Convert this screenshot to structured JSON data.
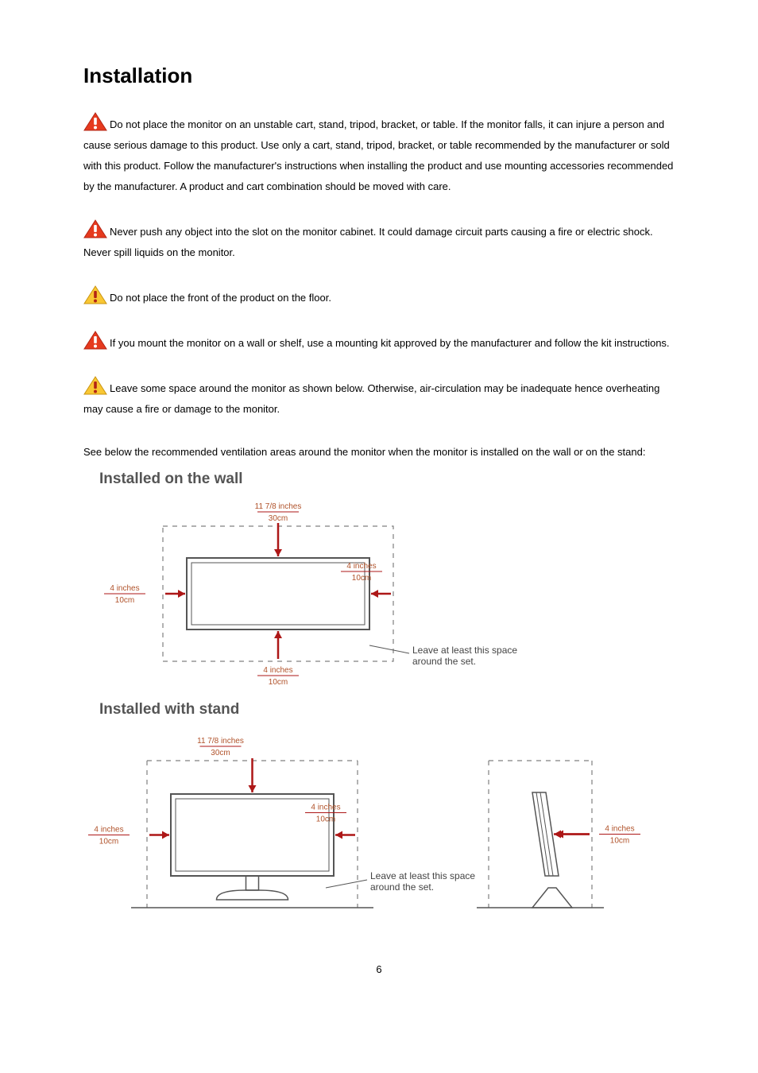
{
  "title": "Installation",
  "warnings": [
    {
      "icon_type": "red",
      "text": "Do not place the monitor on an unstable cart, stand, tripod, bracket, or table. If the monitor falls, it can injure a person and cause serious damage to this product. Use only a cart, stand, tripod, bracket, or table recommended by the manufacturer or sold with this product. Follow the manufacturer's instructions when installing the product and use mounting accessories recommended by the manufacturer. A product and cart combination should be moved with care."
    },
    {
      "icon_type": "red",
      "text": "Never push any object into the slot on the monitor cabinet. It could damage circuit parts causing a fire or electric shock. Never spill liquids on the monitor."
    },
    {
      "icon_type": "yellow",
      "text": "Do not place the front of the product on the floor."
    },
    {
      "icon_type": "red",
      "text": "If you mount the monitor on a wall or shelf, use a mounting kit approved by the manufacturer and follow the kit instructions."
    },
    {
      "icon_type": "yellow",
      "text": "Leave some space around the monitor as shown below. Otherwise, air-circulation may be inadequate hence overheating may cause a fire or damage to the monitor."
    }
  ],
  "plain_text": "See below the recommended ventilation areas around the monitor when the monitor is installed on the wall or on the stand:",
  "diagram1": {
    "title": "Installed on the wall",
    "top_label_inches": "11 7/8 inches",
    "top_label_cm": "30cm",
    "left_label_inches": "4 inches",
    "left_label_cm": "10cm",
    "right_label_inches": "4 inches",
    "right_label_cm": "10cm",
    "bottom_label_inches": "4 inches",
    "bottom_label_cm": "10cm",
    "note_line1": "Leave at least this space",
    "note_line2": "around the set.",
    "colors": {
      "dashed": "#808080",
      "monitor": "#555555",
      "arrow": "#ad1717",
      "label_text": "#b0522a",
      "divider": "#ad1717",
      "note": "#444444"
    }
  },
  "diagram2": {
    "title": "Installed with stand",
    "top_label_inches": "11 7/8 inches",
    "top_label_cm": "30cm",
    "left_label_inches": "4 inches",
    "left_label_cm": "10cm",
    "mid_label_inches": "4 inches",
    "mid_label_cm": "10cm",
    "right_label_inches": "4 inches",
    "right_label_cm": "10cm",
    "note_line1": "Leave at least this space",
    "note_line2": "around the set.",
    "colors": {
      "dashed": "#808080",
      "monitor": "#555555",
      "arrow": "#ad1717",
      "label_text": "#b0522a",
      "divider": "#ad1717",
      "note": "#444444"
    }
  },
  "page_number": "6",
  "icon_colors": {
    "red": {
      "fill": "#e63a1e",
      "stroke": "#b32414",
      "mark": "#ffffff"
    },
    "yellow": {
      "fill": "#f9c733",
      "stroke": "#c99310",
      "mark": "#b32414"
    }
  }
}
